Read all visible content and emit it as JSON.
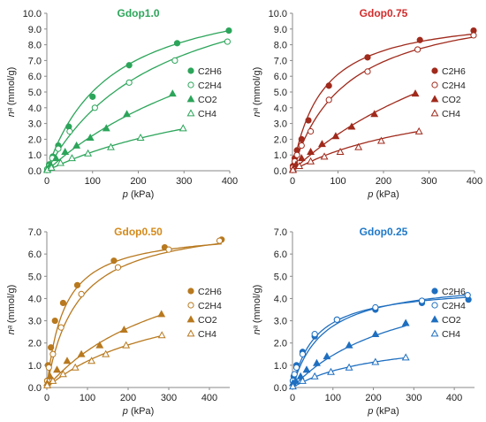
{
  "chart_data": [
    {
      "type": "scatter",
      "title": "Gdop1.0",
      "title_color": "#2ca55a",
      "xlabel": "p (kPa)",
      "ylabel": "nᵃ (mmol/g)",
      "xlim": [
        0,
        400
      ],
      "ylim": [
        0,
        10
      ],
      "xticks": [
        "0",
        "100",
        "200",
        "300",
        "400"
      ],
      "yticks": [
        "0.0",
        "1.0",
        "2.0",
        "3.0",
        "4.0",
        "5.0",
        "6.0",
        "7.0",
        "8.0",
        "9.0",
        "10.0"
      ],
      "grid": false,
      "legend_position": "right",
      "color": "#2ca55a",
      "series": [
        {
          "name": "C2H6",
          "marker": "circle-filled",
          "x": [
            1,
            5,
            13,
            25,
            48,
            100,
            180,
            285,
            398
          ],
          "y": [
            0.1,
            0.4,
            0.9,
            1.6,
            2.8,
            4.7,
            6.7,
            8.1,
            8.9
          ],
          "fit_k": 0.0072,
          "fit_qmax": 12.0
        },
        {
          "name": "C2H4",
          "marker": "circle-open",
          "x": [
            1,
            5,
            12,
            25,
            50,
            105,
            180,
            280,
            395
          ],
          "y": [
            0.1,
            0.3,
            0.8,
            1.4,
            2.5,
            4.0,
            5.6,
            7.0,
            8.2
          ],
          "fit_k": 0.004,
          "fit_qmax": 13.5
        },
        {
          "name": "CO2",
          "marker": "triangle-filled",
          "x": [
            1,
            8,
            20,
            40,
            65,
            95,
            130,
            175,
            275
          ],
          "y": [
            0.1,
            0.4,
            0.8,
            1.2,
            1.6,
            2.1,
            2.7,
            3.6,
            4.9
          ],
          "fit_k": 0.0019,
          "fit_qmax": 14.0
        },
        {
          "name": "CH4",
          "marker": "triangle-open",
          "x": [
            1,
            10,
            30,
            55,
            90,
            140,
            205,
            298
          ],
          "y": [
            0.05,
            0.2,
            0.5,
            0.8,
            1.1,
            1.5,
            2.1,
            2.7
          ],
          "fit_k": 0.0021,
          "fit_qmax": 6.9
        }
      ]
    },
    {
      "type": "scatter",
      "title": "Gdop0.75",
      "title_color": "#d22b2b",
      "xlabel": "p (kPa)",
      "ylabel": "nᵃ (mmol/g)",
      "xlim": [
        0,
        400
      ],
      "ylim": [
        0,
        10
      ],
      "xticks": [
        "0",
        "100",
        "200",
        "300",
        "400"
      ],
      "yticks": [
        "0.0",
        "1.0",
        "2.0",
        "3.0",
        "4.0",
        "5.0",
        "6.0",
        "7.0",
        "8.0",
        "9.0",
        "10.0"
      ],
      "grid": false,
      "legend_position": "right",
      "color": "#a02a1c",
      "series": [
        {
          "name": "C2H6",
          "marker": "circle-filled",
          "x": [
            1,
            5,
            10,
            20,
            35,
            80,
            165,
            280,
            398
          ],
          "y": [
            0.3,
            0.8,
            1.3,
            2.0,
            3.2,
            5.4,
            7.2,
            8.3,
            8.9
          ],
          "fit_k": 0.0154,
          "fit_qmax": 10.1
        },
        {
          "name": "C2H4",
          "marker": "circle-open",
          "x": [
            1,
            5,
            10,
            20,
            40,
            80,
            165,
            275,
            398
          ],
          "y": [
            0.2,
            0.6,
            1.0,
            1.6,
            2.5,
            4.5,
            6.3,
            7.7,
            8.6
          ],
          "fit_k": 0.0085,
          "fit_qmax": 11.0
        },
        {
          "name": "CO2",
          "marker": "triangle-filled",
          "x": [
            1,
            8,
            20,
            40,
            65,
            95,
            130,
            180,
            270
          ],
          "y": [
            0.1,
            0.4,
            0.8,
            1.2,
            1.7,
            2.2,
            2.8,
            3.6,
            4.9
          ],
          "fit_k": 0.0019,
          "fit_qmax": 14.5
        },
        {
          "name": "CH4",
          "marker": "triangle-open",
          "x": [
            1,
            15,
            40,
            70,
            105,
            145,
            195,
            278
          ],
          "y": [
            0.05,
            0.3,
            0.6,
            0.9,
            1.2,
            1.5,
            1.9,
            2.5
          ],
          "fit_k": 0.003,
          "fit_qmax": 5.5
        }
      ]
    },
    {
      "type": "scatter",
      "title": "Gdop0.50",
      "title_color": "#d58a1a",
      "xlabel": "p (kPa)",
      "ylabel": "nᵃ (mmol/g)",
      "xlim": [
        0,
        450
      ],
      "ylim": [
        0,
        7
      ],
      "xticks": [
        "0",
        "100",
        "200",
        "300",
        "400"
      ],
      "yticks": [
        "0.0",
        "1.0",
        "2.0",
        "3.0",
        "4.0",
        "5.0",
        "6.0",
        "7.0"
      ],
      "grid": false,
      "legend_position": "right",
      "color": "#b8791f",
      "series": [
        {
          "name": "C2H6",
          "marker": "circle-filled",
          "x": [
            1,
            3,
            10,
            20,
            40,
            75,
            165,
            290,
            430
          ],
          "y": [
            0.3,
            1.0,
            1.8,
            3.0,
            3.8,
            4.6,
            5.7,
            6.3,
            6.65
          ],
          "fit_k": 0.0233,
          "fit_qmax": 7.1
        },
        {
          "name": "C2H4",
          "marker": "circle-open",
          "x": [
            1,
            5,
            15,
            35,
            85,
            175,
            300,
            425
          ],
          "y": [
            0.3,
            0.9,
            1.5,
            2.7,
            4.2,
            5.4,
            6.2,
            6.6
          ],
          "fit_k": 0.0135,
          "fit_qmax": 7.6
        },
        {
          "name": "CO2",
          "marker": "triangle-filled",
          "x": [
            1,
            8,
            25,
            50,
            85,
            130,
            190,
            282
          ],
          "y": [
            0.2,
            0.5,
            0.8,
            1.2,
            1.5,
            1.9,
            2.6,
            3.3
          ],
          "fit_k": 0.0031,
          "fit_qmax": 7.0
        },
        {
          "name": "CH4",
          "marker": "triangle-open",
          "x": [
            1,
            15,
            40,
            70,
            110,
            145,
            195,
            283
          ],
          "y": [
            0.1,
            0.3,
            0.6,
            0.9,
            1.2,
            1.5,
            1.9,
            2.35
          ],
          "fit_k": 0.0032,
          "fit_qmax": 4.9
        }
      ]
    },
    {
      "type": "scatter",
      "title": "Gdop0.25",
      "title_color": "#1f78c8",
      "xlabel": "p (kPa)",
      "ylabel": "nᵃ (mmol/g)",
      "xlim": [
        0,
        450
      ],
      "ylim": [
        0,
        7
      ],
      "xticks": [
        "0",
        "100",
        "200",
        "300",
        "400"
      ],
      "yticks": [
        "0.0",
        "1.0",
        "2.0",
        "3.0",
        "4.0",
        "5.0",
        "6.0",
        "7.0"
      ],
      "grid": false,
      "legend_position": "right",
      "color": "#1f6fc0",
      "series": [
        {
          "name": "C2H6",
          "marker": "circle-filled",
          "x": [
            1,
            3,
            10,
            25,
            55,
            110,
            205,
            320,
            435
          ],
          "y": [
            0.3,
            0.5,
            1.0,
            1.6,
            2.3,
            3.05,
            3.5,
            3.8,
            3.95
          ],
          "fit_k": 0.0172,
          "fit_qmax": 4.6
        },
        {
          "name": "C2H4",
          "marker": "circle-open",
          "x": [
            1,
            5,
            10,
            25,
            55,
            110,
            205,
            320,
            433
          ],
          "y": [
            0.3,
            0.6,
            0.9,
            1.5,
            2.4,
            3.05,
            3.6,
            3.9,
            4.15
          ],
          "fit_k": 0.0129,
          "fit_qmax": 4.9
        },
        {
          "name": "CO2",
          "marker": "triangle-filled",
          "x": [
            1,
            8,
            20,
            35,
            60,
            85,
            140,
            205,
            280
          ],
          "y": [
            0.2,
            0.3,
            0.5,
            0.8,
            1.1,
            1.4,
            1.9,
            2.4,
            2.9
          ],
          "fit_k": 0.0035,
          "fit_qmax": 5.6
        },
        {
          "name": "CH4",
          "marker": "triangle-open",
          "x": [
            1,
            25,
            55,
            95,
            140,
            205,
            280
          ],
          "y": [
            0.05,
            0.3,
            0.5,
            0.7,
            0.9,
            1.15,
            1.35
          ],
          "fit_k": 0.0045,
          "fit_qmax": 2.4
        }
      ]
    }
  ]
}
